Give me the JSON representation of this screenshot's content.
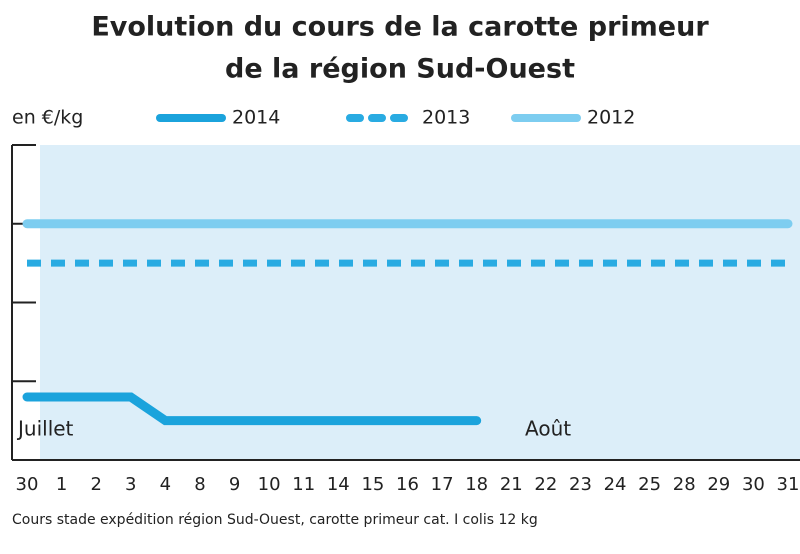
{
  "chart_data": {
    "type": "line",
    "title": [
      "Evolution du cours de la carotte primeur",
      "de la région Sud-Ouest"
    ],
    "y_label": "en €/kg",
    "categories": [
      "30",
      "1",
      "2",
      "3",
      "4",
      "8",
      "9",
      "10",
      "11",
      "14",
      "15",
      "16",
      "17",
      "18",
      "21",
      "22",
      "23",
      "24",
      "25",
      "28",
      "29",
      "30",
      "31"
    ],
    "series": [
      {
        "name": "2014",
        "color": "#1ba3dc",
        "dash": false,
        "values": [
          0.8,
          0.8,
          0.8,
          0.8,
          0.5,
          0.5,
          0.5,
          0.5,
          0.5,
          0.5,
          0.5,
          0.5,
          0.5,
          0.5,
          null,
          null,
          null,
          null,
          null,
          null,
          null,
          null,
          null
        ]
      },
      {
        "name": "2013",
        "color": "#29abe2",
        "dash": true,
        "values": [
          2.5,
          2.5,
          2.5,
          2.5,
          2.5,
          2.5,
          2.5,
          2.5,
          2.5,
          2.5,
          2.5,
          2.5,
          2.5,
          2.5,
          2.5,
          2.5,
          2.5,
          2.5,
          2.5,
          2.5,
          2.5,
          2.5,
          2.5
        ]
      },
      {
        "name": "2012",
        "color": "#7dcdf0",
        "dash": false,
        "values": [
          3,
          3,
          3,
          3,
          3,
          3,
          3,
          3,
          3,
          3,
          3,
          3,
          3,
          3,
          3,
          3,
          3,
          3,
          3,
          3,
          3,
          3,
          3
        ]
      }
    ],
    "annotations": [
      "Juillet",
      "Août"
    ],
    "ylim": [
      0,
      4
    ],
    "yticks": [
      0,
      1,
      2,
      3,
      4
    ],
    "note": "Cours stade expédition région Sud-Ouest, carotte primeur cat. I colis 12 kg"
  }
}
